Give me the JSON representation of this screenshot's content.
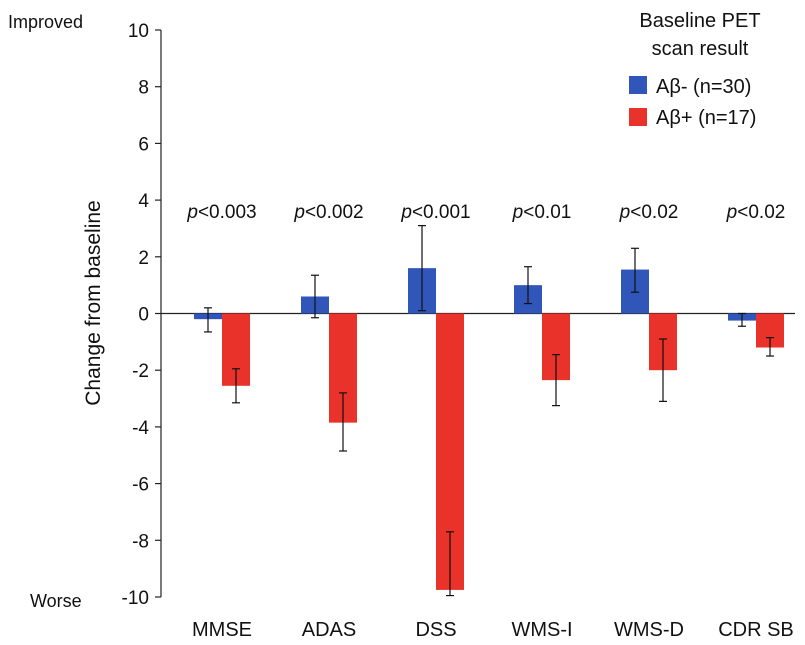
{
  "chart_data": {
    "type": "bar",
    "ylabel": "Change from baseline",
    "ylim": [
      -10,
      10
    ],
    "yticks": [
      "10",
      "8",
      "6",
      "4",
      "2",
      "0",
      "-2",
      "-4",
      "-6",
      "-8",
      "-10"
    ],
    "ytick_values": [
      10,
      8,
      6,
      4,
      2,
      0,
      -2,
      -4,
      -6,
      -8,
      -10
    ],
    "top_annotation": "Improved",
    "bottom_annotation": "Worse",
    "categories": [
      "MMSE",
      "ADAS",
      "DSS",
      "WMS-I",
      "WMS-D",
      "CDR SB"
    ],
    "series": [
      {
        "name": "Aβ- (n=30)",
        "color": "#2f56b8",
        "values": [
          -0.2,
          0.6,
          1.6,
          1.0,
          1.55,
          -0.25
        ],
        "err_low": [
          -0.65,
          -0.15,
          0.1,
          0.35,
          0.75,
          -0.45
        ],
        "err_high": [
          0.2,
          1.35,
          3.1,
          1.65,
          2.3,
          0.0
        ]
      },
      {
        "name": "Aβ+ (n=17)",
        "color": "#e8322a",
        "values": [
          -2.55,
          -3.85,
          -9.75,
          -2.35,
          -2.0,
          -1.2
        ],
        "err_low": [
          -3.15,
          -4.85,
          -9.95,
          -3.25,
          -3.1,
          -1.5
        ],
        "err_high": [
          -1.95,
          -2.8,
          -7.7,
          -1.45,
          -0.9,
          -0.85
        ]
      }
    ],
    "p_values": [
      "<0.003",
      "<0.002",
      "<0.001",
      "<0.01",
      "<0.02",
      "<0.02"
    ],
    "p_prefix": "p",
    "legend": {
      "title_line1": "Baseline PET",
      "title_line2": "scan result",
      "placement": "top-right"
    },
    "grid": false
  }
}
